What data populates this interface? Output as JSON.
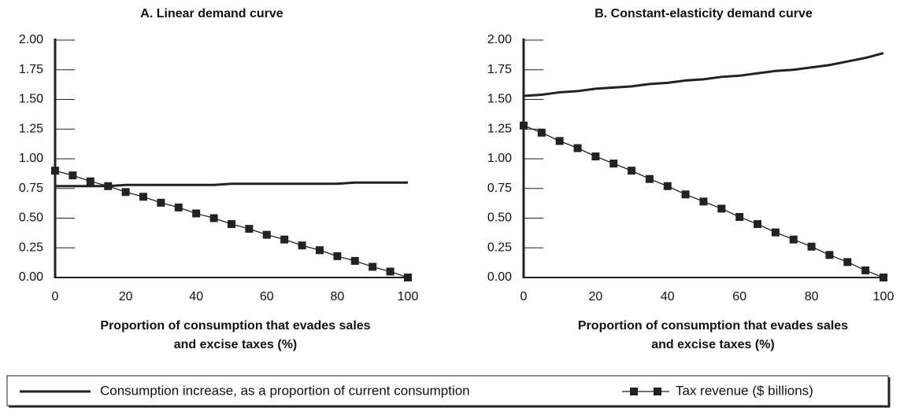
{
  "chart_data": [
    {
      "type": "line",
      "title": "A. Linear demand curve",
      "x_label": [
        "Proportion of consumption that evades sales",
        "and excise taxes (%)"
      ],
      "x": [
        0,
        5,
        10,
        15,
        20,
        25,
        30,
        35,
        40,
        45,
        50,
        55,
        60,
        65,
        70,
        75,
        80,
        85,
        90,
        95,
        100
      ],
      "xlim": [
        0,
        100
      ],
      "xticks": [
        0,
        20,
        40,
        60,
        80,
        100
      ],
      "ylim": [
        0,
        2
      ],
      "yticks": [
        {
          "value": 0,
          "label": "0.00"
        },
        {
          "value": 0.25,
          "label": "0.25"
        },
        {
          "value": 0.5,
          "label": "0.50"
        },
        {
          "value": 0.75,
          "label": "0.75"
        },
        {
          "value": 1,
          "label": "1.00"
        },
        {
          "value": 1.25,
          "label": "1.25"
        },
        {
          "value": 1.5,
          "label": "1.50"
        },
        {
          "value": 1.75,
          "label": "1.75"
        },
        {
          "value": 2,
          "label": "2.00"
        }
      ],
      "series": [
        {
          "name": "Consumption increase, as a proportion of current consumption",
          "color": "#222222",
          "marker": "none",
          "values": [
            0.77,
            0.77,
            0.77,
            0.77,
            0.78,
            0.78,
            0.78,
            0.78,
            0.78,
            0.78,
            0.79,
            0.79,
            0.79,
            0.79,
            0.79,
            0.79,
            0.79,
            0.8,
            0.8,
            0.8,
            0.8
          ]
        },
        {
          "name": "Tax revenue ($ billions)",
          "color": "#222222",
          "marker": "square",
          "values": [
            0.9,
            0.86,
            0.81,
            0.77,
            0.72,
            0.68,
            0.63,
            0.59,
            0.54,
            0.5,
            0.45,
            0.41,
            0.36,
            0.32,
            0.27,
            0.23,
            0.18,
            0.14,
            0.09,
            0.05,
            0
          ]
        }
      ]
    },
    {
      "type": "line",
      "title": "B. Constant-elasticity demand curve",
      "x_label": [
        "Proportion of consumption that evades sales",
        "and excise taxes (%)"
      ],
      "x": [
        0,
        5,
        10,
        15,
        20,
        25,
        30,
        35,
        40,
        45,
        50,
        55,
        60,
        65,
        70,
        75,
        80,
        85,
        90,
        95,
        100
      ],
      "xlim": [
        0,
        100
      ],
      "xticks": [
        0,
        20,
        40,
        60,
        80,
        100
      ],
      "ylim": [
        0,
        2
      ],
      "yticks": [
        {
          "value": 0,
          "label": "0.00"
        },
        {
          "value": 0.25,
          "label": "0.25"
        },
        {
          "value": 0.5,
          "label": "0.50"
        },
        {
          "value": 0.75,
          "label": "0.75"
        },
        {
          "value": 1,
          "label": "1.00"
        },
        {
          "value": 1.25,
          "label": "1.25"
        },
        {
          "value": 1.5,
          "label": "1.50"
        },
        {
          "value": 1.75,
          "label": "1.75"
        },
        {
          "value": 2,
          "label": "2.00"
        }
      ],
      "series": [
        {
          "color": "#222222",
          "marker": "none",
          "values": [
            1.53,
            1.54,
            1.56,
            1.57,
            1.59,
            1.6,
            1.61,
            1.63,
            1.64,
            1.66,
            1.67,
            1.69,
            1.7,
            1.72,
            1.74,
            1.75,
            1.77,
            1.79,
            1.82,
            1.85,
            1.89
          ]
        },
        {
          "color": "#222222",
          "marker": "square",
          "values": [
            1.28,
            1.22,
            1.15,
            1.09,
            1.02,
            0.96,
            0.9,
            0.83,
            0.77,
            0.7,
            0.64,
            0.58,
            0.51,
            0.45,
            0.38,
            0.32,
            0.26,
            0.19,
            0.13,
            0.06,
            0
          ]
        }
      ]
    }
  ]
}
